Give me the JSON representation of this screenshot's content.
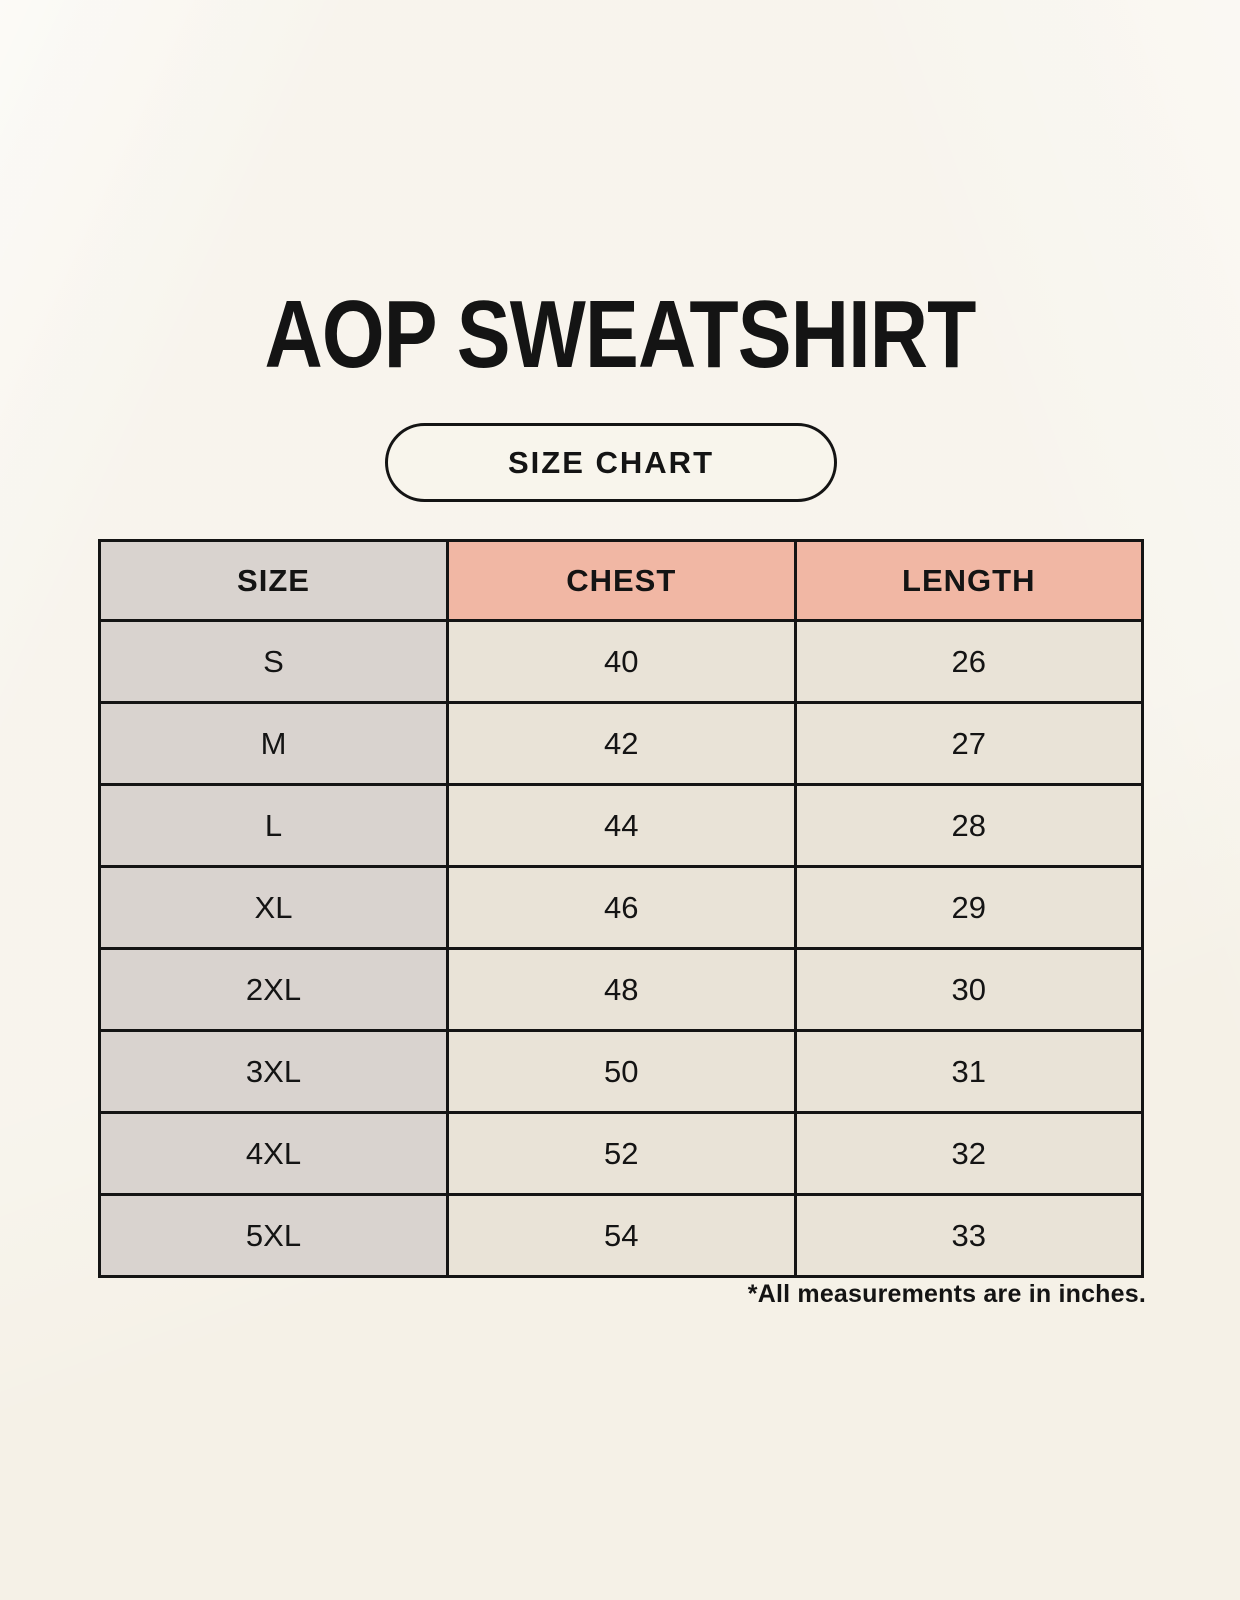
{
  "page": {
    "title": "AOP SWEATSHIRT",
    "size_chart_button_label": "SIZE CHART",
    "footnote": "*All measurements are in inches."
  },
  "table": {
    "columns": [
      "SIZE",
      "CHEST",
      "LENGTH"
    ],
    "rows": [
      {
        "size": "S",
        "chest": "40",
        "length": "26"
      },
      {
        "size": "M",
        "chest": "42",
        "length": "27"
      },
      {
        "size": "L",
        "chest": "44",
        "length": "28"
      },
      {
        "size": "XL",
        "chest": "46",
        "length": "29"
      },
      {
        "size": "2XL",
        "chest": "48",
        "length": "30"
      },
      {
        "size": "3XL",
        "chest": "50",
        "length": "31"
      },
      {
        "size": "4XL",
        "chest": "52",
        "length": "32"
      },
      {
        "size": "5XL",
        "chest": "54",
        "length": "33"
      }
    ],
    "unit_note": "inches"
  },
  "colors": {
    "background": "#f5f1e7",
    "pill_bg": "#f8f5ec",
    "header_size_bg": "#d9d3cf",
    "header_measure_bg": "#f1b7a4",
    "row_label_bg": "#d9d3cf",
    "row_value_bg": "#e9e3d7",
    "border": "#141414",
    "text": "#141414"
  }
}
